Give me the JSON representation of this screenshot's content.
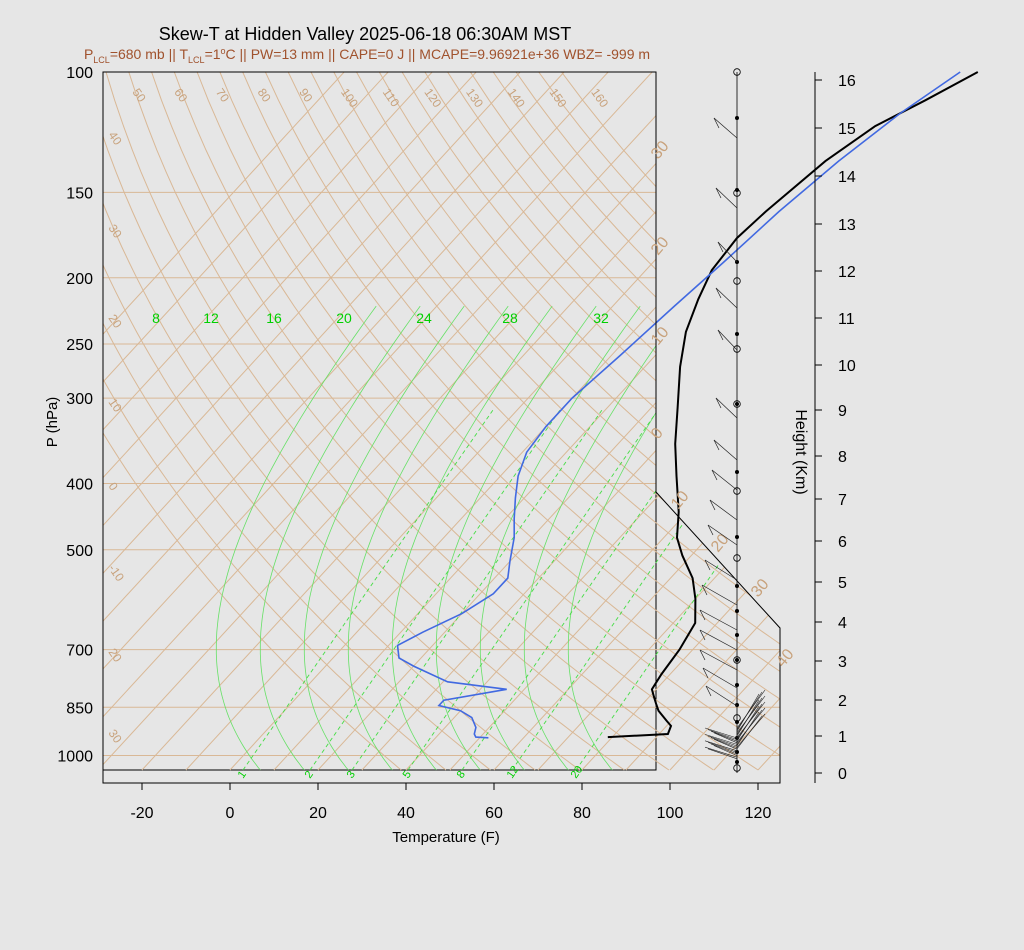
{
  "chart_data": {
    "type": "line",
    "title": "Skew-T at Hidden Valley 2025-06-18 06:30AM MST",
    "subtitle": {
      "p_lcl_label": "P",
      "p_lcl_sub": "LCL",
      "p_lcl_value": "=680 mb || T",
      "t_lcl_sub": "LCL",
      "t_lcl_value": "=1",
      "t_lcl_unit_sup": "o",
      "rest": "C || PW=13 mm || CAPE=0 J || MCAPE=9.96921e+36 WBZ= -999 m"
    },
    "xlabel": "Temperature (F)",
    "ylabel": "P (hPa)",
    "y2label": "Height (Km)",
    "x_ticks": [
      "-20",
      "0",
      "20",
      "40",
      "60",
      "80",
      "100",
      "120"
    ],
    "x_tick_values": [
      -20,
      0,
      20,
      40,
      60,
      80,
      100,
      120
    ],
    "p_ticks": [
      "100",
      "150",
      "200",
      "250",
      "300",
      "400",
      "500",
      "700",
      "850",
      "1000"
    ],
    "p_tick_values": [
      100,
      150,
      200,
      250,
      300,
      400,
      500,
      700,
      850,
      1000
    ],
    "height_ticks": [
      "0",
      "1",
      "2",
      "3",
      "4",
      "5",
      "6",
      "7",
      "8",
      "9",
      "10",
      "11",
      "12",
      "13",
      "14",
      "15",
      "16"
    ],
    "xlim": [
      -29,
      125
    ],
    "ylim": [
      1050,
      100
    ],
    "series": [
      {
        "role": "temperature",
        "color": "#000000",
        "points": [
          [
            79,
            940
          ],
          [
            92,
            930
          ],
          [
            91,
            905
          ],
          [
            89,
            890
          ],
          [
            85,
            860
          ],
          [
            83,
            840
          ],
          [
            81,
            820
          ],
          [
            79,
            800
          ],
          [
            78,
            760
          ],
          [
            77,
            700
          ],
          [
            75,
            640
          ],
          [
            70,
            590
          ],
          [
            65,
            550
          ],
          [
            58,
            510
          ],
          [
            53,
            480
          ],
          [
            48,
            440
          ],
          [
            40,
            390
          ],
          [
            33,
            350
          ],
          [
            26,
            310
          ],
          [
            18,
            270
          ],
          [
            12,
            240
          ],
          [
            8,
            215
          ],
          [
            5,
            195
          ],
          [
            4,
            175
          ],
          [
            5,
            160
          ],
          [
            8,
            135
          ],
          [
            12,
            120
          ],
          [
            18,
            110
          ],
          [
            24,
            100
          ]
        ]
      },
      {
        "role": "dewpoint",
        "color": "#4169e1",
        "points": [
          [
            52,
            942
          ],
          [
            49,
            940
          ],
          [
            48,
            930
          ],
          [
            47,
            910
          ],
          [
            44,
            880
          ],
          [
            40,
            860
          ],
          [
            34,
            845
          ],
          [
            34,
            830
          ],
          [
            46,
            800
          ],
          [
            31,
            780
          ],
          [
            20,
            740
          ],
          [
            15,
            720
          ],
          [
            12,
            690
          ],
          [
            15,
            660
          ],
          [
            20,
            620
          ],
          [
            23,
            580
          ],
          [
            23,
            550
          ],
          [
            20,
            520
          ],
          [
            16,
            480
          ],
          [
            12,
            450
          ],
          [
            8,
            420
          ],
          [
            4,
            390
          ],
          [
            1,
            360
          ],
          [
            0,
            330
          ],
          [
            0,
            300
          ],
          [
            2,
            260
          ],
          [
            4,
            220
          ],
          [
            6,
            190
          ],
          [
            8,
            160
          ],
          [
            11,
            135
          ],
          [
            15,
            115
          ],
          [
            20,
            100
          ]
        ]
      }
    ],
    "isotherm_labels": [
      "50",
      "60",
      "70",
      "80",
      "90",
      "100",
      "110",
      "120",
      "130",
      "140",
      "150",
      "160"
    ],
    "isotherm_values": [
      50,
      60,
      70,
      80,
      90,
      100,
      110,
      120,
      130,
      140,
      150,
      160
    ],
    "side_isotherm_labels": [
      "40",
      "30",
      "20",
      "10",
      "0",
      "10",
      "20",
      "30"
    ],
    "side_isotherm_values": [
      40,
      30,
      20,
      10,
      0,
      10,
      20,
      30
    ],
    "right_isotherm_labels": [
      "30",
      "20",
      "10",
      "0",
      "10",
      "20",
      "30",
      "40"
    ],
    "mixing_ratio_labels_top": [
      "8",
      "12",
      "16",
      "20",
      "24",
      "28",
      "32"
    ],
    "mixing_ratio_labels_bottom": [
      "1",
      "2",
      "3",
      "5",
      "8",
      "12",
      "20"
    ],
    "left_iso_labels": [
      "40",
      "30",
      "20",
      "10",
      "0",
      "-10",
      "20",
      "30"
    ],
    "grid": true
  }
}
